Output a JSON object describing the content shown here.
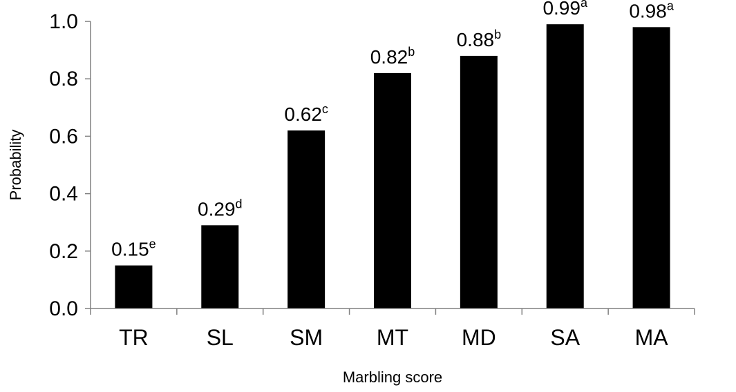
{
  "chart_data": {
    "type": "bar",
    "categories": [
      "TR",
      "SL",
      "SM",
      "MT",
      "MD",
      "SA",
      "MA"
    ],
    "values": [
      0.15,
      0.29,
      0.62,
      0.82,
      0.88,
      0.99,
      0.98
    ],
    "data_labels": [
      {
        "value": "0.15",
        "letter": "e"
      },
      {
        "value": "0.29",
        "letter": "d"
      },
      {
        "value": "0.62",
        "letter": "c"
      },
      {
        "value": "0.82",
        "letter": "b"
      },
      {
        "value": "0.88",
        "letter": "b"
      },
      {
        "value": "0.99",
        "letter": "a"
      },
      {
        "value": "0.98",
        "letter": "a"
      }
    ],
    "y_ticks": [
      "0.0",
      "0.2",
      "0.4",
      "0.6",
      "0.8",
      "1.0"
    ],
    "xlabel": "Marbling score",
    "ylabel": "Probability",
    "ylim": [
      0,
      1.0
    ],
    "grid": false,
    "bar_color": "#000000"
  }
}
